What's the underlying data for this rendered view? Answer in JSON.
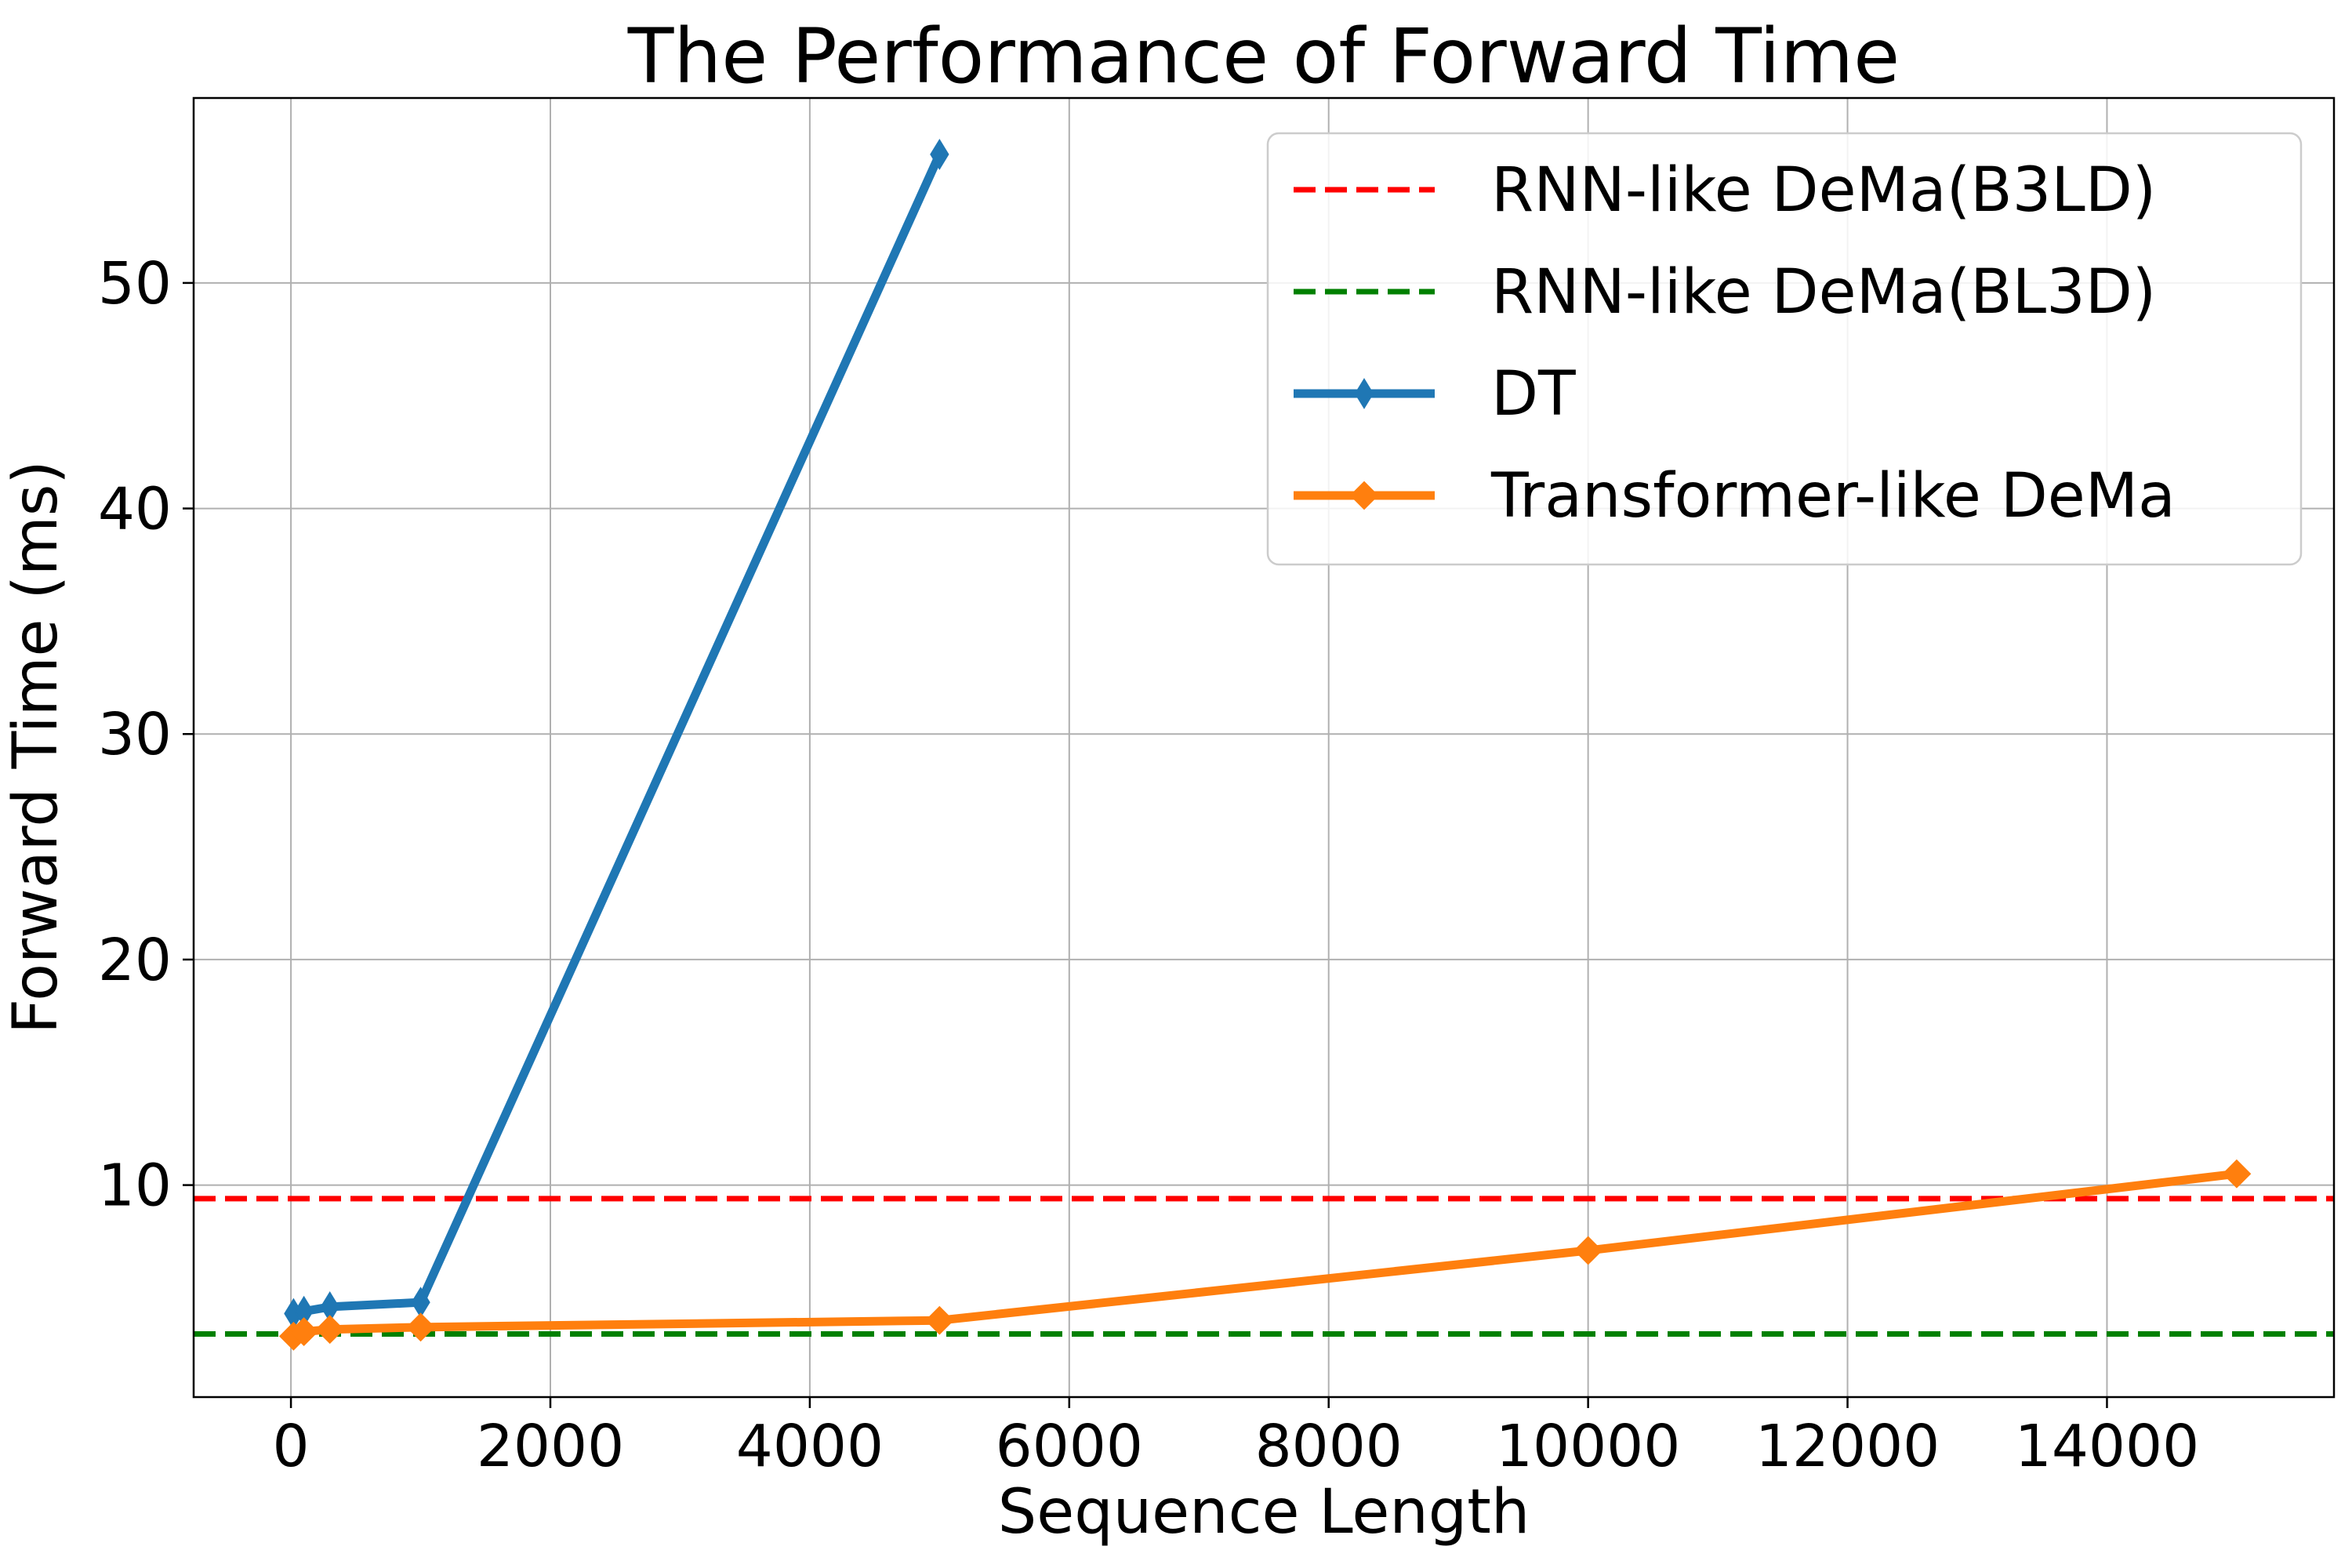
{
  "chart_data": {
    "type": "line",
    "title": "The Performance of Forward Time",
    "xlabel": "Sequence Length",
    "ylabel": "Forward Time (ms)",
    "xlim": [
      -750,
      15750
    ],
    "ylim": [
      0.6,
      58.2
    ],
    "xticks": [
      0,
      2000,
      4000,
      6000,
      8000,
      10000,
      12000,
      14000
    ],
    "yticks": [
      10,
      20,
      30,
      40,
      50
    ],
    "grid": true,
    "legend_position": "top-right",
    "hlines": [
      {
        "name": "RNN-like DeMa(B3LD)",
        "y": 9.4,
        "color": "#ff0000",
        "style": "dashed"
      },
      {
        "name": "RNN-like DeMa(BL3D)",
        "y": 3.4,
        "color": "#008000",
        "style": "dashed"
      }
    ],
    "series": [
      {
        "name": "DT",
        "color": "#1f77b4",
        "marker": "thin_diamond",
        "x": [
          20,
          100,
          300,
          1000,
          5000
        ],
        "y": [
          4.3,
          4.4,
          4.6,
          4.8,
          55.7
        ]
      },
      {
        "name": "Transformer-like DeMa",
        "color": "#ff7f0e",
        "marker": "diamond",
        "x": [
          20,
          100,
          300,
          1000,
          5000,
          10000,
          15000
        ],
        "y": [
          3.3,
          3.5,
          3.6,
          3.7,
          4.0,
          7.1,
          10.5
        ]
      }
    ]
  }
}
